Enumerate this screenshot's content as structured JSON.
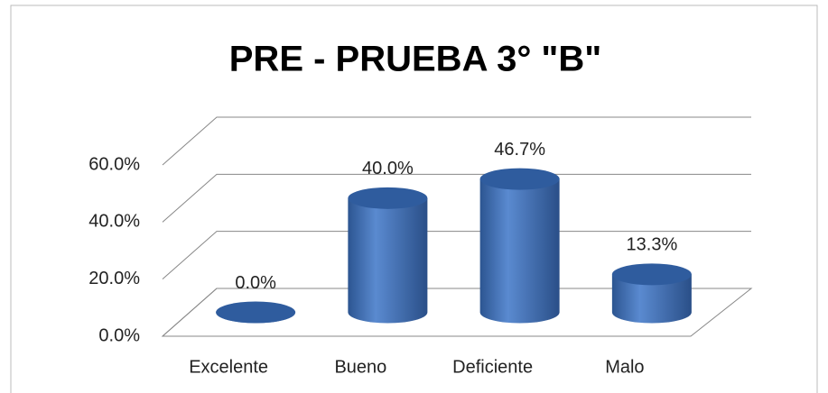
{
  "chart_data": {
    "type": "bar3d_cylinder",
    "title": "PRE - PRUEBA 3° \"B\"",
    "categories": [
      "Excelente",
      "Bueno",
      "Deficiente",
      "Malo"
    ],
    "values": [
      0,
      40,
      46.7,
      13.3
    ],
    "value_labels": [
      "0.0%",
      "40.0%",
      "46.7%",
      "13.3%"
    ],
    "color": "#3f6fb5",
    "ylim": [
      0,
      60
    ],
    "yticks": [
      {
        "value": 0,
        "label": "0.0%"
      },
      {
        "value": 20,
        "label": "20.0%"
      },
      {
        "value": 40,
        "label": "40.0%"
      },
      {
        "value": 60,
        "label": "60.0%"
      }
    ],
    "grid": true
  }
}
